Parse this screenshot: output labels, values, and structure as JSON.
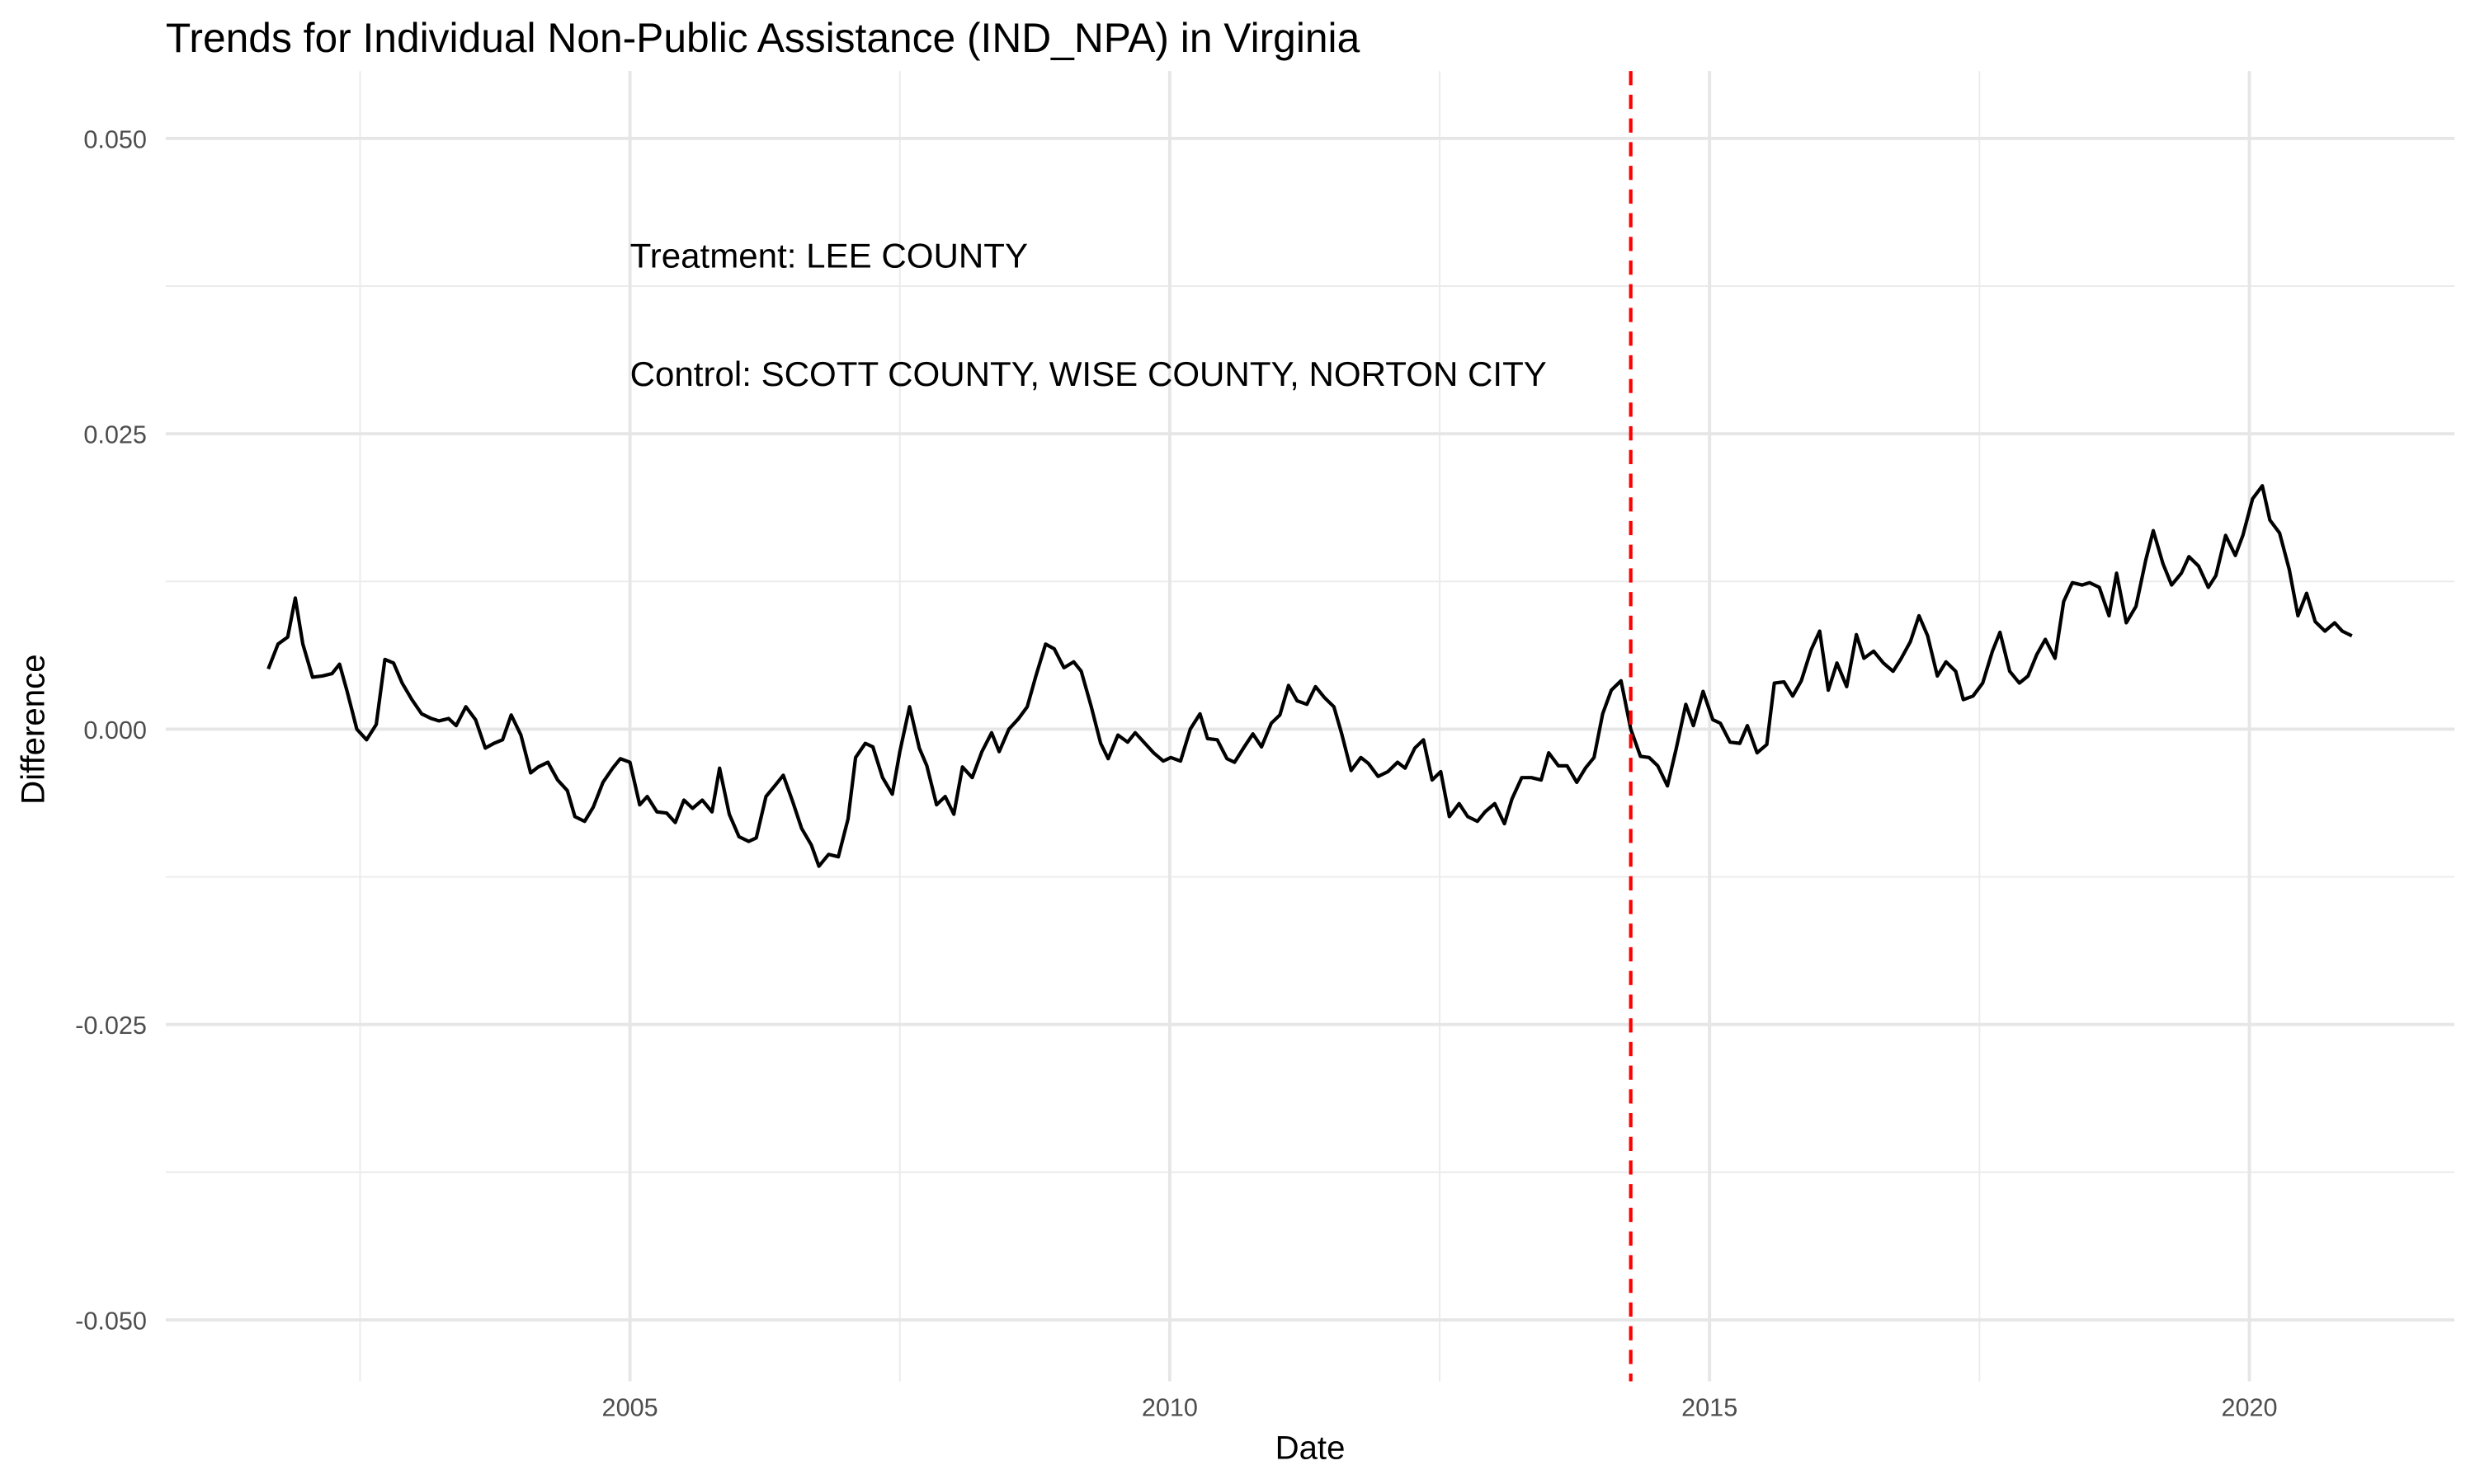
{
  "chart_data": {
    "type": "line",
    "title": "Trends for Individual Non-Public Assistance (IND_NPA) in Virginia",
    "x_label": "Date",
    "y_label": "Difference",
    "xlim": [
      2000.7,
      2021.9
    ],
    "ylim": [
      -0.0552,
      0.0557
    ],
    "xticks": [
      2005,
      2010,
      2015,
      2020
    ],
    "yticks": [
      {
        "value": -0.05,
        "label": "-0.050"
      },
      {
        "value": -0.025,
        "label": "-0.025"
      },
      {
        "value": 0,
        "label": "0.000"
      },
      {
        "value": 0.025,
        "label": "0.025"
      },
      {
        "value": 0.05,
        "label": "0.050"
      }
    ],
    "grid": true,
    "vline": {
      "x": 2014.27,
      "color": "#ff0000",
      "dashed": true
    },
    "annotations": [
      {
        "text": "Treatment: LEE COUNTY",
        "x": 2005,
        "y": 0.04
      },
      {
        "text": "Control: SCOTT COUNTY, WISE COUNTY, NORTON CITY",
        "x": 2005,
        "y": 0.03
      }
    ],
    "x": [
      2001.65,
      2001.74,
      2001.83,
      2001.9,
      2001.97,
      2002.06,
      2002.15,
      2002.24,
      2002.31,
      2002.38,
      2002.47,
      2002.56,
      2002.65,
      2002.73,
      2002.81,
      2002.89,
      2002.98,
      2003.07,
      2003.16,
      2003.23,
      2003.32,
      2003.39,
      2003.48,
      2003.57,
      2003.66,
      2003.74,
      2003.82,
      2003.9,
      2003.99,
      2004.08,
      2004.15,
      2004.24,
      2004.33,
      2004.42,
      2004.49,
      2004.58,
      2004.66,
      2004.75,
      2004.84,
      2004.91,
      2005.0,
      2005.09,
      2005.16,
      2005.25,
      2005.34,
      2005.42,
      2005.5,
      2005.58,
      2005.67,
      2005.76,
      2005.83,
      2005.92,
      2006.01,
      2006.1,
      2006.17,
      2006.26,
      2006.35,
      2006.42,
      2006.51,
      2006.59,
      2006.68,
      2006.75,
      2006.84,
      2006.93,
      2007.02,
      2007.09,
      2007.18,
      2007.25,
      2007.34,
      2007.43,
      2007.5,
      2007.59,
      2007.68,
      2007.75,
      2007.84,
      2007.92,
      2008.0,
      2008.08,
      2008.17,
      2008.26,
      2008.35,
      2008.42,
      2008.51,
      2008.6,
      2008.68,
      2008.76,
      2008.85,
      2008.93,
      2009.02,
      2009.11,
      2009.18,
      2009.27,
      2009.36,
      2009.43,
      2009.52,
      2009.61,
      2009.68,
      2009.77,
      2009.85,
      2009.94,
      2010.01,
      2010.1,
      2010.19,
      2010.28,
      2010.35,
      2010.44,
      2010.53,
      2010.6,
      2010.69,
      2010.77,
      2010.85,
      2010.94,
      2011.02,
      2011.1,
      2011.18,
      2011.27,
      2011.35,
      2011.43,
      2011.52,
      2011.59,
      2011.68,
      2011.77,
      2011.84,
      2011.93,
      2012.02,
      2012.11,
      2012.18,
      2012.27,
      2012.35,
      2012.43,
      2012.51,
      2012.59,
      2012.68,
      2012.76,
      2012.85,
      2012.92,
      2013.01,
      2013.1,
      2013.17,
      2013.26,
      2013.35,
      2013.44,
      2013.51,
      2013.6,
      2013.68,
      2013.77,
      2013.85,
      2013.93,
      2014.01,
      2014.09,
      2014.18,
      2014.27,
      2014.36,
      2014.44,
      2014.52,
      2014.61,
      2014.69,
      2014.78,
      2014.85,
      2014.94,
      2015.03,
      2015.1,
      2015.19,
      2015.28,
      2015.35,
      2015.44,
      2015.53,
      2015.6,
      2015.69,
      2015.77,
      2015.85,
      2015.94,
      2016.02,
      2016.1,
      2016.18,
      2016.27,
      2016.36,
      2016.43,
      2016.52,
      2016.61,
      2016.7,
      2016.77,
      2016.86,
      2016.94,
      2017.02,
      2017.11,
      2017.19,
      2017.28,
      2017.35,
      2017.44,
      2017.53,
      2017.62,
      2017.69,
      2017.78,
      2017.87,
      2017.95,
      2018.03,
      2018.11,
      2018.2,
      2018.28,
      2018.36,
      2018.45,
      2018.52,
      2018.61,
      2018.7,
      2018.77,
      2018.86,
      2018.95,
      2019.04,
      2019.11,
      2019.2,
      2019.28,
      2019.37,
      2019.44,
      2019.53,
      2019.62,
      2019.69,
      2019.78,
      2019.87,
      2019.94,
      2020.03,
      2020.12,
      2020.19,
      2020.28,
      2020.37,
      2020.45,
      2020.53,
      2020.61,
      2020.7,
      2020.79,
      2020.86,
      2020.95
    ],
    "series": [
      {
        "color": "#000000",
        "values": [
          0.0051,
          0.0072,
          0.0078,
          0.0111,
          0.0072,
          0.0044,
          0.0045,
          0.0047,
          0.0055,
          0.0032,
          0,
          -0.0009,
          0.0004,
          0.0059,
          0.0056,
          0.0039,
          0.0025,
          0.0013,
          0.0009,
          0.0007,
          0.0009,
          0.0003,
          0.0019,
          0.0008,
          -0.0016,
          -0.0012,
          -0.0009,
          0.0012,
          -0.0005,
          -0.0037,
          -0.0032,
          -0.0028,
          -0.0043,
          -0.0052,
          -0.0074,
          -0.0078,
          -0.0066,
          -0.0045,
          -0.0033,
          -0.0025,
          -0.0028,
          -0.0064,
          -0.0057,
          -0.007,
          -0.0071,
          -0.0079,
          -0.006,
          -0.0067,
          -0.006,
          -0.007,
          -0.0033,
          -0.0072,
          -0.0091,
          -0.0095,
          -0.0092,
          -0.0057,
          -0.0047,
          -0.0039,
          -0.0062,
          -0.0084,
          -0.0098,
          -0.0116,
          -0.0106,
          -0.0108,
          -0.0076,
          -0.0024,
          -0.0012,
          -0.0015,
          -0.0041,
          -0.0055,
          -0.0019,
          0.0019,
          -0.0016,
          -0.0031,
          -0.0064,
          -0.0057,
          -0.0072,
          -0.0032,
          -0.0041,
          -0.0019,
          -0.0003,
          -0.0019,
          0,
          0.0009,
          0.0019,
          0.0045,
          0.0072,
          0.0068,
          0.0052,
          0.0057,
          0.0049,
          0.002,
          -0.0012,
          -0.0025,
          -0.0005,
          -0.0011,
          -0.0003,
          -0.0012,
          -0.002,
          -0.0027,
          -0.0024,
          -0.0027,
          0,
          0.0013,
          -0.0008,
          -0.0009,
          -0.0025,
          -0.0028,
          -0.0015,
          -0.0004,
          -0.0015,
          0.0005,
          0.0012,
          0.0037,
          0.0024,
          0.0021,
          0.0036,
          0.0027,
          0.0019,
          -0.0003,
          -0.0035,
          -0.0024,
          -0.0029,
          -0.004,
          -0.0036,
          -0.0028,
          -0.0033,
          -0.0016,
          -0.0009,
          -0.0043,
          -0.0036,
          -0.0074,
          -0.0063,
          -0.0074,
          -0.0078,
          -0.007,
          -0.0063,
          -0.008,
          -0.0059,
          -0.0041,
          -0.0041,
          -0.0043,
          -0.002,
          -0.0031,
          -0.0031,
          -0.0045,
          -0.0033,
          -0.0024,
          0.0013,
          0.0033,
          0.0041,
          0,
          -0.0023,
          -0.0024,
          -0.0031,
          -0.0048,
          -0.0017,
          0.0021,
          0.0003,
          0.0032,
          0.0008,
          0.0005,
          -0.0011,
          -0.0012,
          0.0003,
          -0.002,
          -0.0013,
          0.0039,
          0.004,
          0.0028,
          0.0041,
          0.0067,
          0.0083,
          0.0033,
          0.0056,
          0.0036,
          0.008,
          0.006,
          0.0066,
          0.0056,
          0.0049,
          0.0059,
          0.0074,
          0.0096,
          0.0079,
          0.0045,
          0.0057,
          0.0049,
          0.0025,
          0.0028,
          0.0039,
          0.0066,
          0.0082,
          0.0049,
          0.0039,
          0.0045,
          0.0063,
          0.0076,
          0.006,
          0.0108,
          0.0124,
          0.0122,
          0.0124,
          0.012,
          0.0096,
          0.0132,
          0.009,
          0.0104,
          0.0143,
          0.0168,
          0.014,
          0.0122,
          0.0132,
          0.0146,
          0.0138,
          0.012,
          0.013,
          0.0164,
          0.0147,
          0.0164,
          0.0195,
          0.0206,
          0.0177,
          0.0166,
          0.0135,
          0.0096,
          0.0115,
          0.0091,
          0.0083,
          0.009,
          0.0083,
          0.0079
        ]
      }
    ]
  }
}
